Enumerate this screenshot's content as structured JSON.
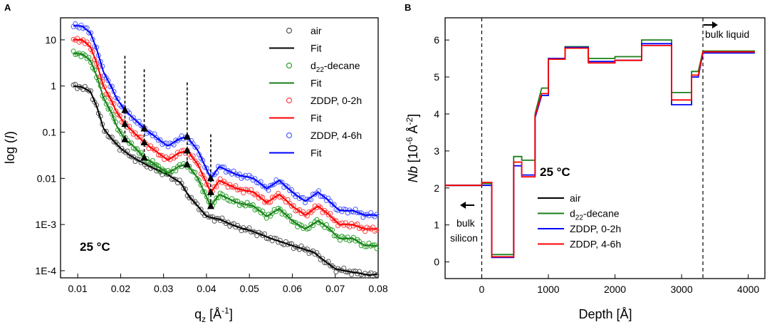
{
  "chart_data": [
    {
      "panel_label": "A",
      "type": "scatter",
      "title": "",
      "xlabel": "q",
      "xlabel_sub": "z",
      "xlabel_unit": "[Å",
      "xlabel_sup": "-1",
      "xlabel_close": "]",
      "ylabel_pre": "log (",
      "ylabel_var": "I",
      "ylabel_post": ")",
      "yscale": "log",
      "xlim": [
        0.006,
        0.08
      ],
      "ylim": [
        7e-05,
        30
      ],
      "x_ticks": [
        {
          "value": 0.01,
          "label": "0.01"
        },
        {
          "value": 0.02,
          "label": "0.02"
        },
        {
          "value": 0.03,
          "label": "0.03"
        },
        {
          "value": 0.04,
          "label": "0.04"
        },
        {
          "value": 0.05,
          "label": "0.05"
        },
        {
          "value": 0.06,
          "label": "0.06"
        },
        {
          "value": 0.07,
          "label": "0.07"
        },
        {
          "value": 0.08,
          "label": "0.08"
        }
      ],
      "y_ticks": [
        {
          "value": 10,
          "label": "10"
        },
        {
          "value": 1,
          "label": "1"
        },
        {
          "value": 0.1,
          "label": "0.1"
        },
        {
          "value": 0.01,
          "label": "0.01"
        },
        {
          "value": 0.001,
          "label": "1E-3"
        },
        {
          "value": 0.0001,
          "label": "1E-4"
        }
      ],
      "annotation": "25 °C",
      "legend_position": "top-right",
      "legend": [
        {
          "label": "air",
          "kind": "marker",
          "color": "#555555"
        },
        {
          "label": "Fit",
          "kind": "line",
          "color": "#000000"
        },
        {
          "label": "d",
          "sub": "22",
          "suffix": "-decane",
          "kind": "marker",
          "color": "#2ca02c"
        },
        {
          "label": "Fit",
          "kind": "line",
          "color": "#1a7f1a"
        },
        {
          "label": "ZDDP, 0-2h",
          "kind": "marker",
          "color": "#ff4040"
        },
        {
          "label": "Fit",
          "kind": "line",
          "color": "#ff0000"
        },
        {
          "label": "ZDDP, 4-6h",
          "kind": "marker",
          "color": "#4d5bff"
        },
        {
          "label": "Fit",
          "kind": "line",
          "color": "#0000ff"
        }
      ],
      "series": [
        {
          "name": "air",
          "color": "#555555",
          "fit_color": "#000000",
          "points": [
            [
              0.009,
              1.0
            ],
            [
              0.011,
              0.95
            ],
            [
              0.013,
              0.75
            ],
            [
              0.0145,
              0.35
            ],
            [
              0.016,
              0.12
            ],
            [
              0.018,
              0.07
            ],
            [
              0.02,
              0.045
            ],
            [
              0.022,
              0.032
            ],
            [
              0.025,
              0.022
            ],
            [
              0.028,
              0.016
            ],
            [
              0.031,
              0.012
            ],
            [
              0.034,
              0.008
            ],
            [
              0.036,
              0.004
            ],
            [
              0.038,
              0.0025
            ],
            [
              0.04,
              0.0015
            ],
            [
              0.043,
              0.0013
            ],
            [
              0.047,
              0.0009
            ],
            [
              0.051,
              0.0007
            ],
            [
              0.055,
              0.0005
            ],
            [
              0.06,
              0.00035
            ],
            [
              0.065,
              0.00025
            ],
            [
              0.068,
              0.00015
            ],
            [
              0.07,
              0.00011
            ],
            [
              0.072,
              0.0001
            ],
            [
              0.075,
              9e-05
            ],
            [
              0.078,
              8e-05
            ],
            [
              0.08,
              8.5e-05
            ]
          ]
        },
        {
          "name": "d22-decane",
          "color": "#2ca02c",
          "fit_color": "#1a7f1a",
          "points": [
            [
              0.009,
              5.0
            ],
            [
              0.011,
              5.0
            ],
            [
              0.013,
              3.5
            ],
            [
              0.0145,
              1.6
            ],
            [
              0.016,
              0.55
            ],
            [
              0.018,
              0.25
            ],
            [
              0.019,
              0.14
            ],
            [
              0.021,
              0.07
            ],
            [
              0.023,
              0.05
            ],
            [
              0.0255,
              0.028
            ],
            [
              0.028,
              0.02
            ],
            [
              0.031,
              0.013
            ],
            [
              0.0335,
              0.018
            ],
            [
              0.0355,
              0.02
            ],
            [
              0.038,
              0.01
            ],
            [
              0.041,
              0.0025
            ],
            [
              0.043,
              0.0045
            ],
            [
              0.047,
              0.003
            ],
            [
              0.051,
              0.0025
            ],
            [
              0.054,
              0.0015
            ],
            [
              0.057,
              0.0022
            ],
            [
              0.06,
              0.0012
            ],
            [
              0.063,
              0.0008
            ],
            [
              0.066,
              0.0012
            ],
            [
              0.068,
              0.0009
            ],
            [
              0.071,
              0.0005
            ],
            [
              0.074,
              0.0005
            ],
            [
              0.077,
              0.00035
            ],
            [
              0.08,
              0.00035
            ]
          ]
        },
        {
          "name": "ZDDP, 0-2h",
          "color": "#ff4040",
          "fit_color": "#ff0000",
          "points": [
            [
              0.009,
              10.0
            ],
            [
              0.011,
              10.0
            ],
            [
              0.013,
              7.0
            ],
            [
              0.0145,
              3.0
            ],
            [
              0.016,
              1.0
            ],
            [
              0.018,
              0.45
            ],
            [
              0.019,
              0.28
            ],
            [
              0.021,
              0.15
            ],
            [
              0.023,
              0.1
            ],
            [
              0.0255,
              0.06
            ],
            [
              0.028,
              0.04
            ],
            [
              0.031,
              0.025
            ],
            [
              0.0335,
              0.035
            ],
            [
              0.0355,
              0.04
            ],
            [
              0.038,
              0.02
            ],
            [
              0.041,
              0.005
            ],
            [
              0.043,
              0.009
            ],
            [
              0.047,
              0.006
            ],
            [
              0.051,
              0.005
            ],
            [
              0.054,
              0.003
            ],
            [
              0.057,
              0.0045
            ],
            [
              0.06,
              0.0025
            ],
            [
              0.063,
              0.0016
            ],
            [
              0.066,
              0.0025
            ],
            [
              0.068,
              0.0018
            ],
            [
              0.071,
              0.001
            ],
            [
              0.074,
              0.001
            ],
            [
              0.077,
              0.0008
            ],
            [
              0.08,
              0.0008
            ]
          ]
        },
        {
          "name": "ZDDP, 4-6h",
          "color": "#4d5bff",
          "fit_color": "#0000ff",
          "points": [
            [
              0.009,
              20.0
            ],
            [
              0.011,
              20.0
            ],
            [
              0.013,
              14.0
            ],
            [
              0.0145,
              6.0
            ],
            [
              0.016,
              2.0
            ],
            [
              0.018,
              0.9
            ],
            [
              0.019,
              0.55
            ],
            [
              0.021,
              0.3
            ],
            [
              0.023,
              0.2
            ],
            [
              0.0255,
              0.12
            ],
            [
              0.028,
              0.08
            ],
            [
              0.031,
              0.05
            ],
            [
              0.0335,
              0.07
            ],
            [
              0.0355,
              0.08
            ],
            [
              0.038,
              0.04
            ],
            [
              0.041,
              0.01
            ],
            [
              0.043,
              0.018
            ],
            [
              0.047,
              0.012
            ],
            [
              0.051,
              0.01
            ],
            [
              0.054,
              0.006
            ],
            [
              0.057,
              0.009
            ],
            [
              0.06,
              0.005
            ],
            [
              0.063,
              0.0032
            ],
            [
              0.066,
              0.005
            ],
            [
              0.068,
              0.0036
            ],
            [
              0.071,
              0.002
            ],
            [
              0.074,
              0.002
            ],
            [
              0.077,
              0.0016
            ],
            [
              0.08,
              0.0016
            ]
          ]
        }
      ],
      "peak_markers": [
        {
          "x": 0.021,
          "y_top": 4.5,
          "values": [
            0.3,
            0.15,
            0.07
          ]
        },
        {
          "x": 0.0255,
          "y_top": 2.3,
          "values": [
            0.12,
            0.06,
            0.028
          ]
        },
        {
          "x": 0.0355,
          "y_top": 1.2,
          "values": [
            0.08,
            0.04,
            0.02
          ]
        },
        {
          "x": 0.041,
          "y_top": 0.09,
          "values": [
            0.01,
            0.005,
            0.0025
          ]
        }
      ]
    },
    {
      "panel_label": "B",
      "type": "line",
      "title": "",
      "xlabel": "Depth [Å]",
      "ylabel_var": "Nb",
      "ylabel_unit": "[10",
      "ylabel_sup1": "-6",
      "ylabel_mid": "Å",
      "ylabel_sup2": "-2",
      "ylabel_close": "]",
      "xlim": [
        -550,
        4250
      ],
      "ylim": [
        -0.45,
        6.6
      ],
      "x_ticks": [
        {
          "value": 0,
          "label": "0"
        },
        {
          "value": 1000,
          "label": "1000"
        },
        {
          "value": 2000,
          "label": "2000"
        },
        {
          "value": 3000,
          "label": "3000"
        },
        {
          "value": 4000,
          "label": "4000"
        }
      ],
      "y_ticks": [
        {
          "value": 0,
          "label": "0"
        },
        {
          "value": 1,
          "label": "1"
        },
        {
          "value": 2,
          "label": "2"
        },
        {
          "value": 3,
          "label": "3"
        },
        {
          "value": 4,
          "label": "4"
        },
        {
          "value": 5,
          "label": "5"
        },
        {
          "value": 6,
          "label": "6"
        }
      ],
      "annotations": {
        "temperature": "25 °C",
        "bulk_liquid": "bulk liquid",
        "bulk_silicon_line1": "bulk",
        "bulk_silicon_line2": "silicon"
      },
      "boundaries": [
        0,
        3320
      ],
      "legend_position": "center-right",
      "legend": [
        {
          "label": "air",
          "color": "#000000"
        },
        {
          "label": "d",
          "sub": "22",
          "suffix": "-decane",
          "color": "#1a7f1a"
        },
        {
          "label": "ZDDP, 0-2h",
          "color": "#0000ff"
        },
        {
          "label": "ZDDP, 4-6h",
          "color": "#ff0000"
        }
      ],
      "series": [
        {
          "name": "d22-decane",
          "color": "#1a7f1a",
          "points": [
            [
              -550,
              2.07
            ],
            [
              0,
              2.07
            ],
            [
              0,
              2.12
            ],
            [
              150,
              2.12
            ],
            [
              150,
              0.2
            ],
            [
              480,
              0.2
            ],
            [
              480,
              2.85
            ],
            [
              600,
              2.85
            ],
            [
              600,
              2.75
            ],
            [
              800,
              2.75
            ],
            [
              800,
              4.0
            ],
            [
              900,
              4.7
            ],
            [
              1000,
              4.7
            ],
            [
              1000,
              5.5
            ],
            [
              1250,
              5.5
            ],
            [
              1250,
              5.82
            ],
            [
              1600,
              5.82
            ],
            [
              1600,
              5.5
            ],
            [
              2000,
              5.5
            ],
            [
              2000,
              5.55
            ],
            [
              2400,
              5.55
            ],
            [
              2400,
              6.0
            ],
            [
              2850,
              6.0
            ],
            [
              2850,
              4.58
            ],
            [
              3150,
              4.58
            ],
            [
              3150,
              5.15
            ],
            [
              3250,
              5.15
            ],
            [
              3320,
              5.7
            ],
            [
              4100,
              5.7
            ]
          ]
        },
        {
          "name": "ZDDP, 0-2h",
          "color": "#0000ff",
          "points": [
            [
              -550,
              2.07
            ],
            [
              0,
              2.07
            ],
            [
              0,
              2.07
            ],
            [
              150,
              2.07
            ],
            [
              150,
              0.12
            ],
            [
              480,
              0.12
            ],
            [
              480,
              2.6
            ],
            [
              600,
              2.6
            ],
            [
              600,
              2.35
            ],
            [
              800,
              2.35
            ],
            [
              800,
              3.9
            ],
            [
              900,
              4.5
            ],
            [
              1000,
              4.5
            ],
            [
              1000,
              5.5
            ],
            [
              1250,
              5.5
            ],
            [
              1250,
              5.8
            ],
            [
              1600,
              5.8
            ],
            [
              1600,
              5.42
            ],
            [
              2000,
              5.42
            ],
            [
              2000,
              5.45
            ],
            [
              2400,
              5.45
            ],
            [
              2400,
              5.9
            ],
            [
              2850,
              5.9
            ],
            [
              2850,
              4.25
            ],
            [
              3150,
              4.25
            ],
            [
              3150,
              5.0
            ],
            [
              3250,
              5.0
            ],
            [
              3320,
              5.65
            ],
            [
              4100,
              5.65
            ]
          ]
        },
        {
          "name": "ZDDP, 4-6h",
          "color": "#ff0000",
          "points": [
            [
              -550,
              2.07
            ],
            [
              0,
              2.07
            ],
            [
              0,
              2.15
            ],
            [
              150,
              2.15
            ],
            [
              150,
              0.14
            ],
            [
              480,
              0.14
            ],
            [
              480,
              2.7
            ],
            [
              600,
              2.7
            ],
            [
              600,
              2.3
            ],
            [
              800,
              2.3
            ],
            [
              800,
              3.95
            ],
            [
              900,
              4.55
            ],
            [
              1000,
              4.55
            ],
            [
              1000,
              5.48
            ],
            [
              1250,
              5.48
            ],
            [
              1250,
              5.78
            ],
            [
              1600,
              5.78
            ],
            [
              1600,
              5.38
            ],
            [
              2000,
              5.38
            ],
            [
              2000,
              5.45
            ],
            [
              2400,
              5.45
            ],
            [
              2400,
              5.85
            ],
            [
              2850,
              5.85
            ],
            [
              2850,
              4.38
            ],
            [
              3150,
              4.38
            ],
            [
              3150,
              5.05
            ],
            [
              3250,
              5.05
            ],
            [
              3320,
              5.68
            ],
            [
              4100,
              5.68
            ]
          ]
        }
      ]
    }
  ]
}
